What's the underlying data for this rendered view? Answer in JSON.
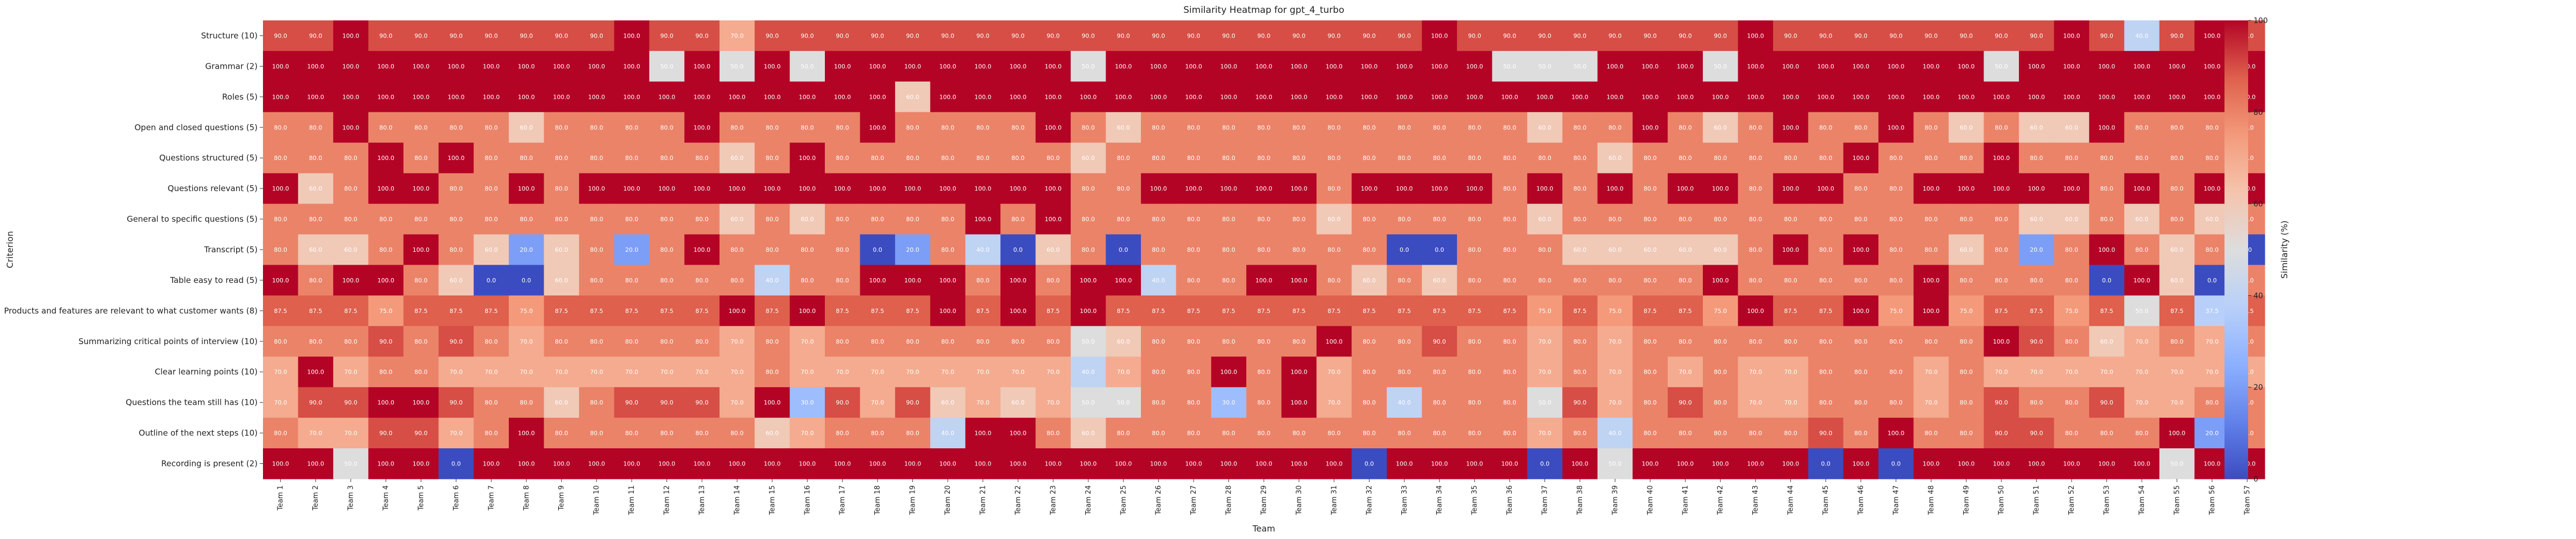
{
  "chart_data": {
    "type": "heatmap",
    "title": "Similarity Heatmap for gpt_4_turbo",
    "xlabel": "Team",
    "ylabel": "Criterion",
    "colorbar_label": "Similarity (%)",
    "colorbar_ticks": [
      0,
      20,
      40,
      60,
      80,
      100
    ],
    "vmin": 0,
    "vmax": 100,
    "colormap": "coolwarm",
    "colors": {
      "low": "#3b4cc0",
      "mid": "#dddddd",
      "high": "#b40426"
    },
    "rows": [
      "Structure (10)",
      "Grammar (2)",
      "Roles (5)",
      "Open and closed questions (5)",
      "Questions structured (5)",
      "Questions relevant (5)",
      "General to specific questions (5)",
      "Transcript (5)",
      "Table easy to read (5)",
      "Products and features are relevant to what customer wants (8)",
      "Summarizing critical points of interview (10)",
      "Clear learning points (10)",
      "Questions the team still has (10)",
      "Outline of the next steps (10)",
      "Recording is present (2)"
    ],
    "columns": [
      "Team 1",
      "Team 2",
      "Team 3",
      "Team 4",
      "Team 5",
      "Team 6",
      "Team 7",
      "Team 8",
      "Team 9",
      "Team 10",
      "Team 11",
      "Team 12",
      "Team 13",
      "Team 14",
      "Team 15",
      "Team 16",
      "Team 17",
      "Team 18",
      "Team 19",
      "Team 20",
      "Team 21",
      "Team 22",
      "Team 23",
      "Team 24",
      "Team 25",
      "Team 26",
      "Team 27",
      "Team 28",
      "Team 29",
      "Team 30",
      "Team 31",
      "Team 32",
      "Team 33",
      "Team 34",
      "Team 35",
      "Team 36",
      "Team 37",
      "Team 38",
      "Team 39",
      "Team 40",
      "Team 41",
      "Team 42",
      "Team 43",
      "Team 44",
      "Team 45",
      "Team 46",
      "Team 47",
      "Team 48",
      "Team 49",
      "Team 50",
      "Team 51",
      "Team 52",
      "Team 53",
      "Team 54",
      "Team 55",
      "Team 56",
      "Team 57"
    ],
    "values": [
      [
        90,
        90,
        100,
        90,
        90,
        90,
        90,
        90,
        90,
        90,
        100,
        90,
        90,
        70,
        90,
        90,
        90,
        90,
        90,
        90,
        90,
        90,
        90,
        90,
        90,
        90,
        90,
        90,
        90,
        90,
        90,
        90,
        90,
        100,
        90,
        90,
        90,
        90,
        90,
        90,
        90,
        90,
        100,
        90,
        90,
        90,
        90,
        90,
        90,
        90,
        90,
        100,
        90,
        40,
        90,
        100,
        90
      ],
      [
        100,
        100,
        100,
        100,
        100,
        100,
        100,
        100,
        100,
        100,
        100,
        50,
        100,
        50,
        100,
        50,
        100,
        100,
        100,
        100,
        100,
        100,
        100,
        50,
        100,
        100,
        100,
        100,
        100,
        100,
        100,
        100,
        100,
        100,
        100,
        50,
        50,
        50,
        100,
        100,
        100,
        50,
        100,
        100,
        100,
        100,
        100,
        100,
        100,
        50,
        100,
        100,
        100,
        100,
        100,
        100,
        100
      ],
      [
        100,
        100,
        100,
        100,
        100,
        100,
        100,
        100,
        100,
        100,
        100,
        100,
        100,
        100,
        100,
        100,
        100,
        100,
        60,
        100,
        100,
        100,
        100,
        100,
        100,
        100,
        100,
        100,
        100,
        100,
        100,
        100,
        100,
        100,
        100,
        100,
        100,
        100,
        100,
        100,
        100,
        100,
        100,
        100,
        100,
        100,
        100,
        100,
        100,
        100,
        100,
        100,
        100,
        100,
        100,
        100,
        100
      ],
      [
        80,
        80,
        100,
        80,
        80,
        80,
        80,
        60,
        80,
        80,
        80,
        80,
        100,
        80,
        80,
        80,
        80,
        100,
        80,
        80,
        80,
        80,
        100,
        80,
        60,
        80,
        80,
        80,
        80,
        80,
        80,
        80,
        80,
        80,
        80,
        80,
        60,
        80,
        80,
        100,
        80,
        60,
        80,
        100,
        80,
        80,
        100,
        80,
        60,
        80,
        60,
        60,
        100,
        80,
        80,
        80,
        80
      ],
      [
        80,
        80,
        80,
        100,
        80,
        100,
        80,
        80,
        80,
        80,
        80,
        80,
        80,
        60,
        80,
        100,
        80,
        80,
        80,
        80,
        80,
        80,
        80,
        60,
        80,
        80,
        80,
        80,
        80,
        80,
        80,
        80,
        80,
        80,
        80,
        80,
        80,
        80,
        60,
        80,
        80,
        80,
        80,
        80,
        80,
        100,
        80,
        80,
        80,
        100,
        80,
        80,
        80,
        80,
        80,
        80,
        80
      ],
      [
        100,
        60,
        80,
        100,
        100,
        80,
        80,
        100,
        80,
        100,
        100,
        100,
        100,
        100,
        100,
        100,
        100,
        100,
        100,
        100,
        100,
        100,
        100,
        80,
        80,
        100,
        100,
        100,
        100,
        100,
        80,
        100,
        100,
        100,
        100,
        80,
        100,
        80,
        100,
        80,
        100,
        100,
        80,
        100,
        100,
        80,
        80,
        100,
        100,
        100,
        100,
        100,
        80,
        100,
        80,
        100,
        100
      ],
      [
        80,
        80,
        80,
        80,
        80,
        80,
        80,
        80,
        80,
        80,
        80,
        80,
        80,
        60,
        80,
        60,
        80,
        80,
        80,
        80,
        100,
        80,
        100,
        80,
        80,
        80,
        80,
        80,
        80,
        80,
        60,
        80,
        80,
        80,
        80,
        80,
        60,
        80,
        80,
        80,
        80,
        80,
        80,
        80,
        80,
        80,
        80,
        80,
        80,
        80,
        60,
        60,
        80,
        60,
        80,
        60,
        80
      ],
      [
        80,
        60,
        60,
        80,
        100,
        80,
        60,
        20,
        60,
        80,
        20,
        80,
        100,
        80,
        80,
        80,
        80,
        0,
        20,
        80,
        40,
        0,
        60,
        80,
        0,
        80,
        80,
        80,
        80,
        80,
        80,
        80,
        0,
        0,
        80,
        80,
        80,
        60,
        60,
        60,
        60,
        60,
        80,
        100,
        80,
        100,
        80,
        80,
        60,
        80,
        20,
        80,
        100,
        80,
        60,
        80,
        0
      ],
      [
        100,
        80,
        100,
        100,
        80,
        60,
        0,
        0,
        60,
        80,
        80,
        80,
        80,
        80,
        40,
        80,
        80,
        100,
        100,
        100,
        80,
        100,
        80,
        100,
        100,
        40,
        80,
        80,
        100,
        100,
        80,
        60,
        80,
        60,
        80,
        80,
        80,
        80,
        80,
        80,
        80,
        100,
        80,
        80,
        80,
        80,
        80,
        100,
        80,
        80,
        80,
        80,
        0,
        100,
        60,
        0,
        80
      ],
      [
        87.5,
        87.5,
        87.5,
        75,
        87.5,
        87.5,
        87.5,
        75,
        87.5,
        87.5,
        87.5,
        87.5,
        87.5,
        100,
        87.5,
        100,
        87.5,
        87.5,
        87.5,
        100,
        87.5,
        100,
        87.5,
        100,
        87.5,
        87.5,
        87.5,
        87.5,
        87.5,
        87.5,
        87.5,
        87.5,
        87.5,
        87.5,
        87.5,
        87.5,
        75,
        87.5,
        75,
        87.5,
        87.5,
        75,
        100,
        87.5,
        87.5,
        100,
        75,
        100,
        75,
        87.5,
        87.5,
        75,
        87.5,
        50,
        87.5,
        37.5,
        87.5
      ],
      [
        80,
        80,
        80,
        90,
        80,
        90,
        80,
        70,
        80,
        80,
        80,
        80,
        80,
        70,
        80,
        70,
        80,
        80,
        80,
        80,
        80,
        80,
        80,
        50,
        60,
        80,
        80,
        80,
        80,
        80,
        100,
        80,
        80,
        90,
        80,
        80,
        70,
        80,
        70,
        80,
        80,
        80,
        80,
        80,
        80,
        80,
        80,
        80,
        80,
        100,
        90,
        80,
        60,
        70,
        80,
        70,
        80
      ],
      [
        70,
        100,
        70,
        80,
        80,
        70,
        70,
        70,
        70,
        70,
        70,
        70,
        70,
        70,
        80,
        70,
        70,
        70,
        70,
        70,
        70,
        70,
        70,
        40,
        70,
        80,
        80,
        100,
        80,
        100,
        70,
        80,
        80,
        80,
        80,
        80,
        70,
        80,
        70,
        80,
        70,
        80,
        70,
        70,
        80,
        80,
        80,
        70,
        80,
        70,
        70,
        70,
        70,
        70,
        70,
        70,
        70
      ],
      [
        70,
        90,
        90,
        100,
        100,
        90,
        80,
        80,
        60,
        80,
        90,
        90,
        90,
        70,
        100,
        30,
        90,
        70,
        90,
        60,
        70,
        60,
        70,
        50,
        50,
        80,
        80,
        30,
        80,
        100,
        70,
        80,
        40,
        80,
        80,
        80,
        50,
        90,
        70,
        80,
        90,
        80,
        70,
        70,
        80,
        80,
        80,
        70,
        80,
        90,
        80,
        80,
        90,
        70,
        70,
        80,
        80
      ],
      [
        80,
        70,
        70,
        90,
        90,
        70,
        80,
        100,
        80,
        80,
        80,
        80,
        80,
        80,
        60,
        70,
        80,
        80,
        80,
        40,
        100,
        100,
        80,
        60,
        80,
        80,
        80,
        80,
        80,
        80,
        80,
        80,
        80,
        80,
        80,
        80,
        70,
        80,
        40,
        80,
        80,
        80,
        80,
        80,
        90,
        80,
        100,
        80,
        80,
        90,
        90,
        80,
        80,
        80,
        100,
        20,
        80
      ],
      [
        100,
        100,
        50,
        100,
        100,
        0,
        100,
        100,
        100,
        100,
        100,
        100,
        100,
        100,
        100,
        100,
        100,
        100,
        100,
        100,
        100,
        100,
        100,
        100,
        100,
        100,
        100,
        100,
        100,
        100,
        100,
        0,
        100,
        100,
        100,
        100,
        0,
        100,
        50,
        100,
        100,
        100,
        100,
        100,
        0,
        100,
        0,
        100,
        100,
        100,
        100,
        100,
        100,
        100,
        50,
        100,
        100
      ]
    ]
  }
}
